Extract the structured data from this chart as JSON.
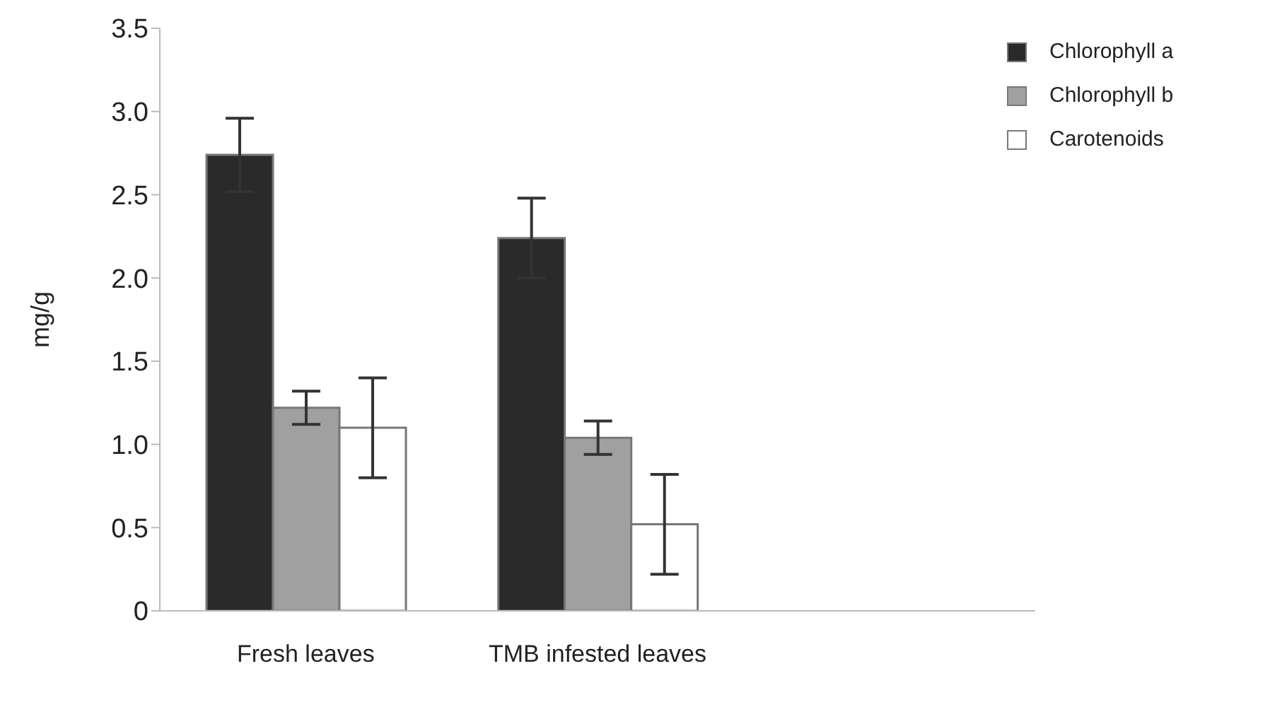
{
  "chart_data": {
    "type": "bar",
    "ylabel": "mg/g",
    "categories": [
      "Fresh leaves",
      "TMB infested leaves",
      null
    ],
    "series": [
      {
        "name": "Chlorophyll a",
        "color": "#2a2a2a",
        "values": [
          2.74,
          2.24,
          null
        ],
        "errors": [
          0.22,
          0.24,
          null
        ]
      },
      {
        "name": "Chlorophyll b",
        "color": "#a0a0a0",
        "values": [
          1.22,
          1.04,
          null
        ],
        "errors": [
          0.1,
          0.1,
          null
        ]
      },
      {
        "name": "Carotenoids",
        "color": "#ffffff",
        "values": [
          1.1,
          0.52,
          null
        ],
        "errors": [
          0.3,
          0.3,
          null
        ]
      }
    ],
    "ylim": [
      0,
      3.5
    ],
    "yticks": [
      0,
      0.5,
      {
        "value": 1,
        "label": "1.0"
      },
      1.5,
      {
        "value": 2,
        "label": "2.0"
      },
      2.5,
      {
        "value": 3,
        "label": "3.0"
      },
      3.5
    ],
    "grid": false,
    "legend": "top right"
  }
}
